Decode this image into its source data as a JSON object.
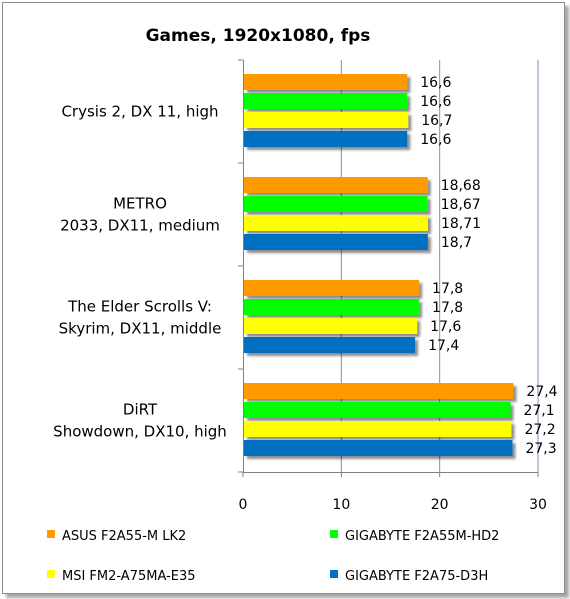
{
  "chart_data": {
    "type": "bar",
    "orientation": "horizontal",
    "title": "Games, 1920x1080, fps",
    "categories": [
      [
        "Crysis 2, DX 11, high"
      ],
      [
        "METRO",
        "2033, DX11, medium"
      ],
      [
        "The Elder Scrolls V:",
        "Skyrim, DX11, middle"
      ],
      [
        "DiRT",
        "Showdown, DX10, high"
      ]
    ],
    "series": [
      {
        "name": "ASUS F2A55-M LK2",
        "color": "#ff9900",
        "values": [
          16.6,
          18.68,
          17.8,
          27.4
        ],
        "labels": [
          "16,6",
          "18,68",
          "17,8",
          "27,4"
        ]
      },
      {
        "name": "GIGABYTE F2A55M-HD2",
        "color": "#00ff00",
        "values": [
          16.6,
          18.67,
          17.8,
          27.1
        ],
        "labels": [
          "16,6",
          "18,67",
          "17,8",
          "27,1"
        ]
      },
      {
        "name": "MSI FM2-A75MA-E35",
        "color": "#ffff00",
        "values": [
          16.7,
          18.71,
          17.6,
          27.2
        ],
        "labels": [
          "16,7",
          "18,71",
          "17,6",
          "27,2"
        ]
      },
      {
        "name": "GIGABYTE F2A75-D3H",
        "color": "#0070c0",
        "values": [
          16.6,
          18.7,
          17.4,
          27.3
        ],
        "labels": [
          "16,6",
          "18,7",
          "17,4",
          "27,3"
        ]
      }
    ],
    "xlim": [
      0,
      30
    ],
    "xticks": [
      0,
      10,
      20,
      30
    ],
    "xtick_labels": [
      "0",
      "10",
      "20",
      "30"
    ],
    "grid": "vertical",
    "legend_position": "bottom",
    "xlabel": "",
    "ylabel": ""
  }
}
